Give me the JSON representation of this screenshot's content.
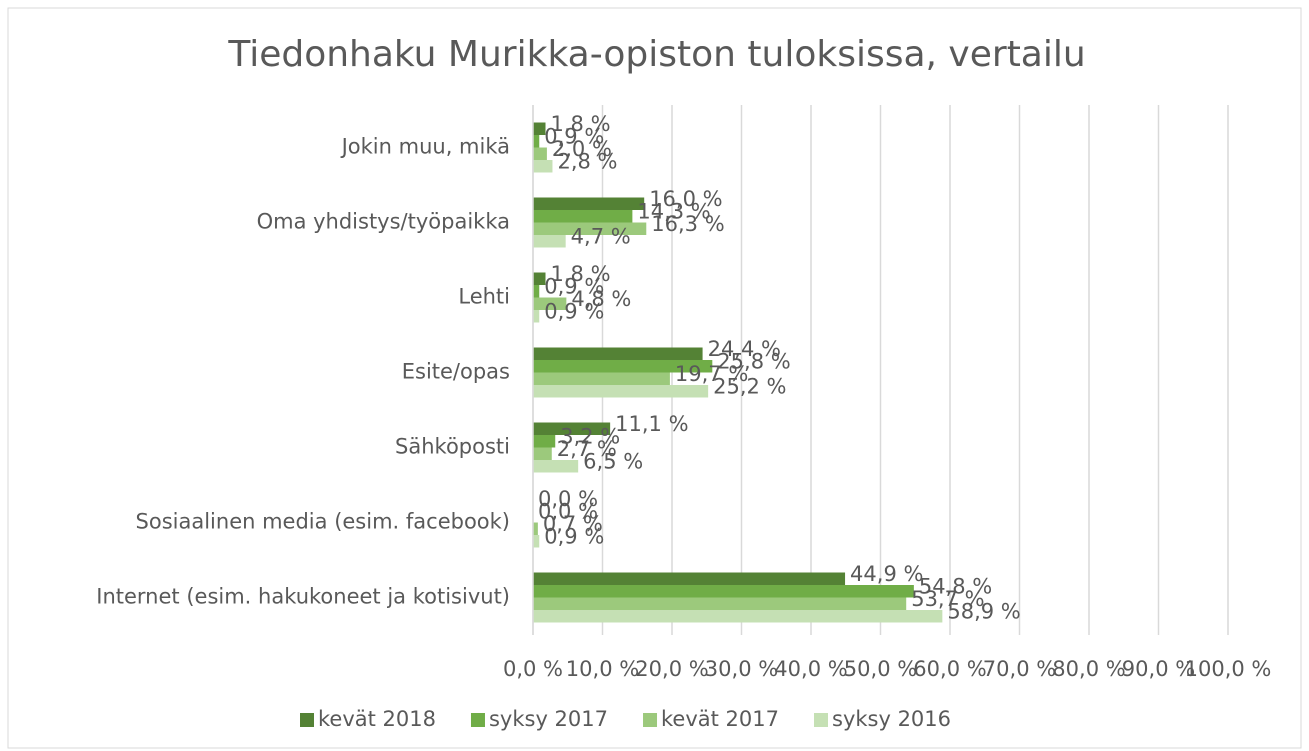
{
  "chart_data": {
    "type": "hbar",
    "title": "Tiedonhaku Murikka-opiston tuloksissa, vertailu",
    "categories": [
      "Jokin muu, mikä",
      "Oma yhdistys/työpaikka",
      "Lehti",
      "Esite/opas",
      "Sähköposti",
      "Sosiaalinen media (esim. facebook)",
      "Internet (esim. hakukoneet ja kotisivut)"
    ],
    "series": [
      {
        "name": "kevät 2018",
        "color": "#548235",
        "values": [
          1.8,
          16.0,
          1.8,
          24.4,
          11.1,
          0.0,
          44.9
        ],
        "value_labels": [
          "1,8 %",
          "16,0 %",
          "1,8 %",
          "24,4 %",
          "11,1 %",
          "0,0 %",
          "44,9 %"
        ]
      },
      {
        "name": "syksy 2017",
        "color": "#70ad47",
        "values": [
          0.9,
          14.3,
          0.9,
          25.8,
          3.2,
          0.0,
          54.8
        ],
        "value_labels": [
          "0,9 %",
          "14,3 %",
          "0,9 %",
          "25,8 %",
          "3,2 %",
          "0,0 %",
          "54,8 %"
        ]
      },
      {
        "name": "kevät 2017",
        "color": "#9cc97c",
        "values": [
          2.0,
          16.3,
          4.8,
          19.7,
          2.7,
          0.7,
          53.7
        ],
        "value_labels": [
          "2,0 %",
          "16,3 %",
          "4,8 %",
          "19,7 %",
          "2,7 %",
          "0,7 %",
          "53,7 %"
        ]
      },
      {
        "name": "syksy 2016",
        "color": "#c5e0b4",
        "values": [
          2.8,
          4.7,
          0.9,
          25.2,
          6.5,
          0.9,
          58.9
        ],
        "value_labels": [
          "2,8 %",
          "4,7 %",
          "0,9 %",
          "25,2 %",
          "6,5 %",
          "0,9 %",
          "58,9 %"
        ]
      }
    ],
    "xlim": [
      0,
      100
    ],
    "xticks": [
      {
        "value": 0,
        "label": "0,0 %"
      },
      {
        "value": 10,
        "label": "10,0 %"
      },
      {
        "value": 20,
        "label": "20,0 %"
      },
      {
        "value": 30,
        "label": "30,0 %"
      },
      {
        "value": 40,
        "label": "40,0 %"
      },
      {
        "value": 50,
        "label": "50,0 %"
      },
      {
        "value": 60,
        "label": "60,0 %"
      },
      {
        "value": 70,
        "label": "70,0 %"
      },
      {
        "value": 80,
        "label": "80,0 %"
      },
      {
        "value": 90,
        "label": "90,0 %"
      },
      {
        "value": 100,
        "label": "100,0 %"
      }
    ],
    "grid": true,
    "legend": "bottom"
  }
}
